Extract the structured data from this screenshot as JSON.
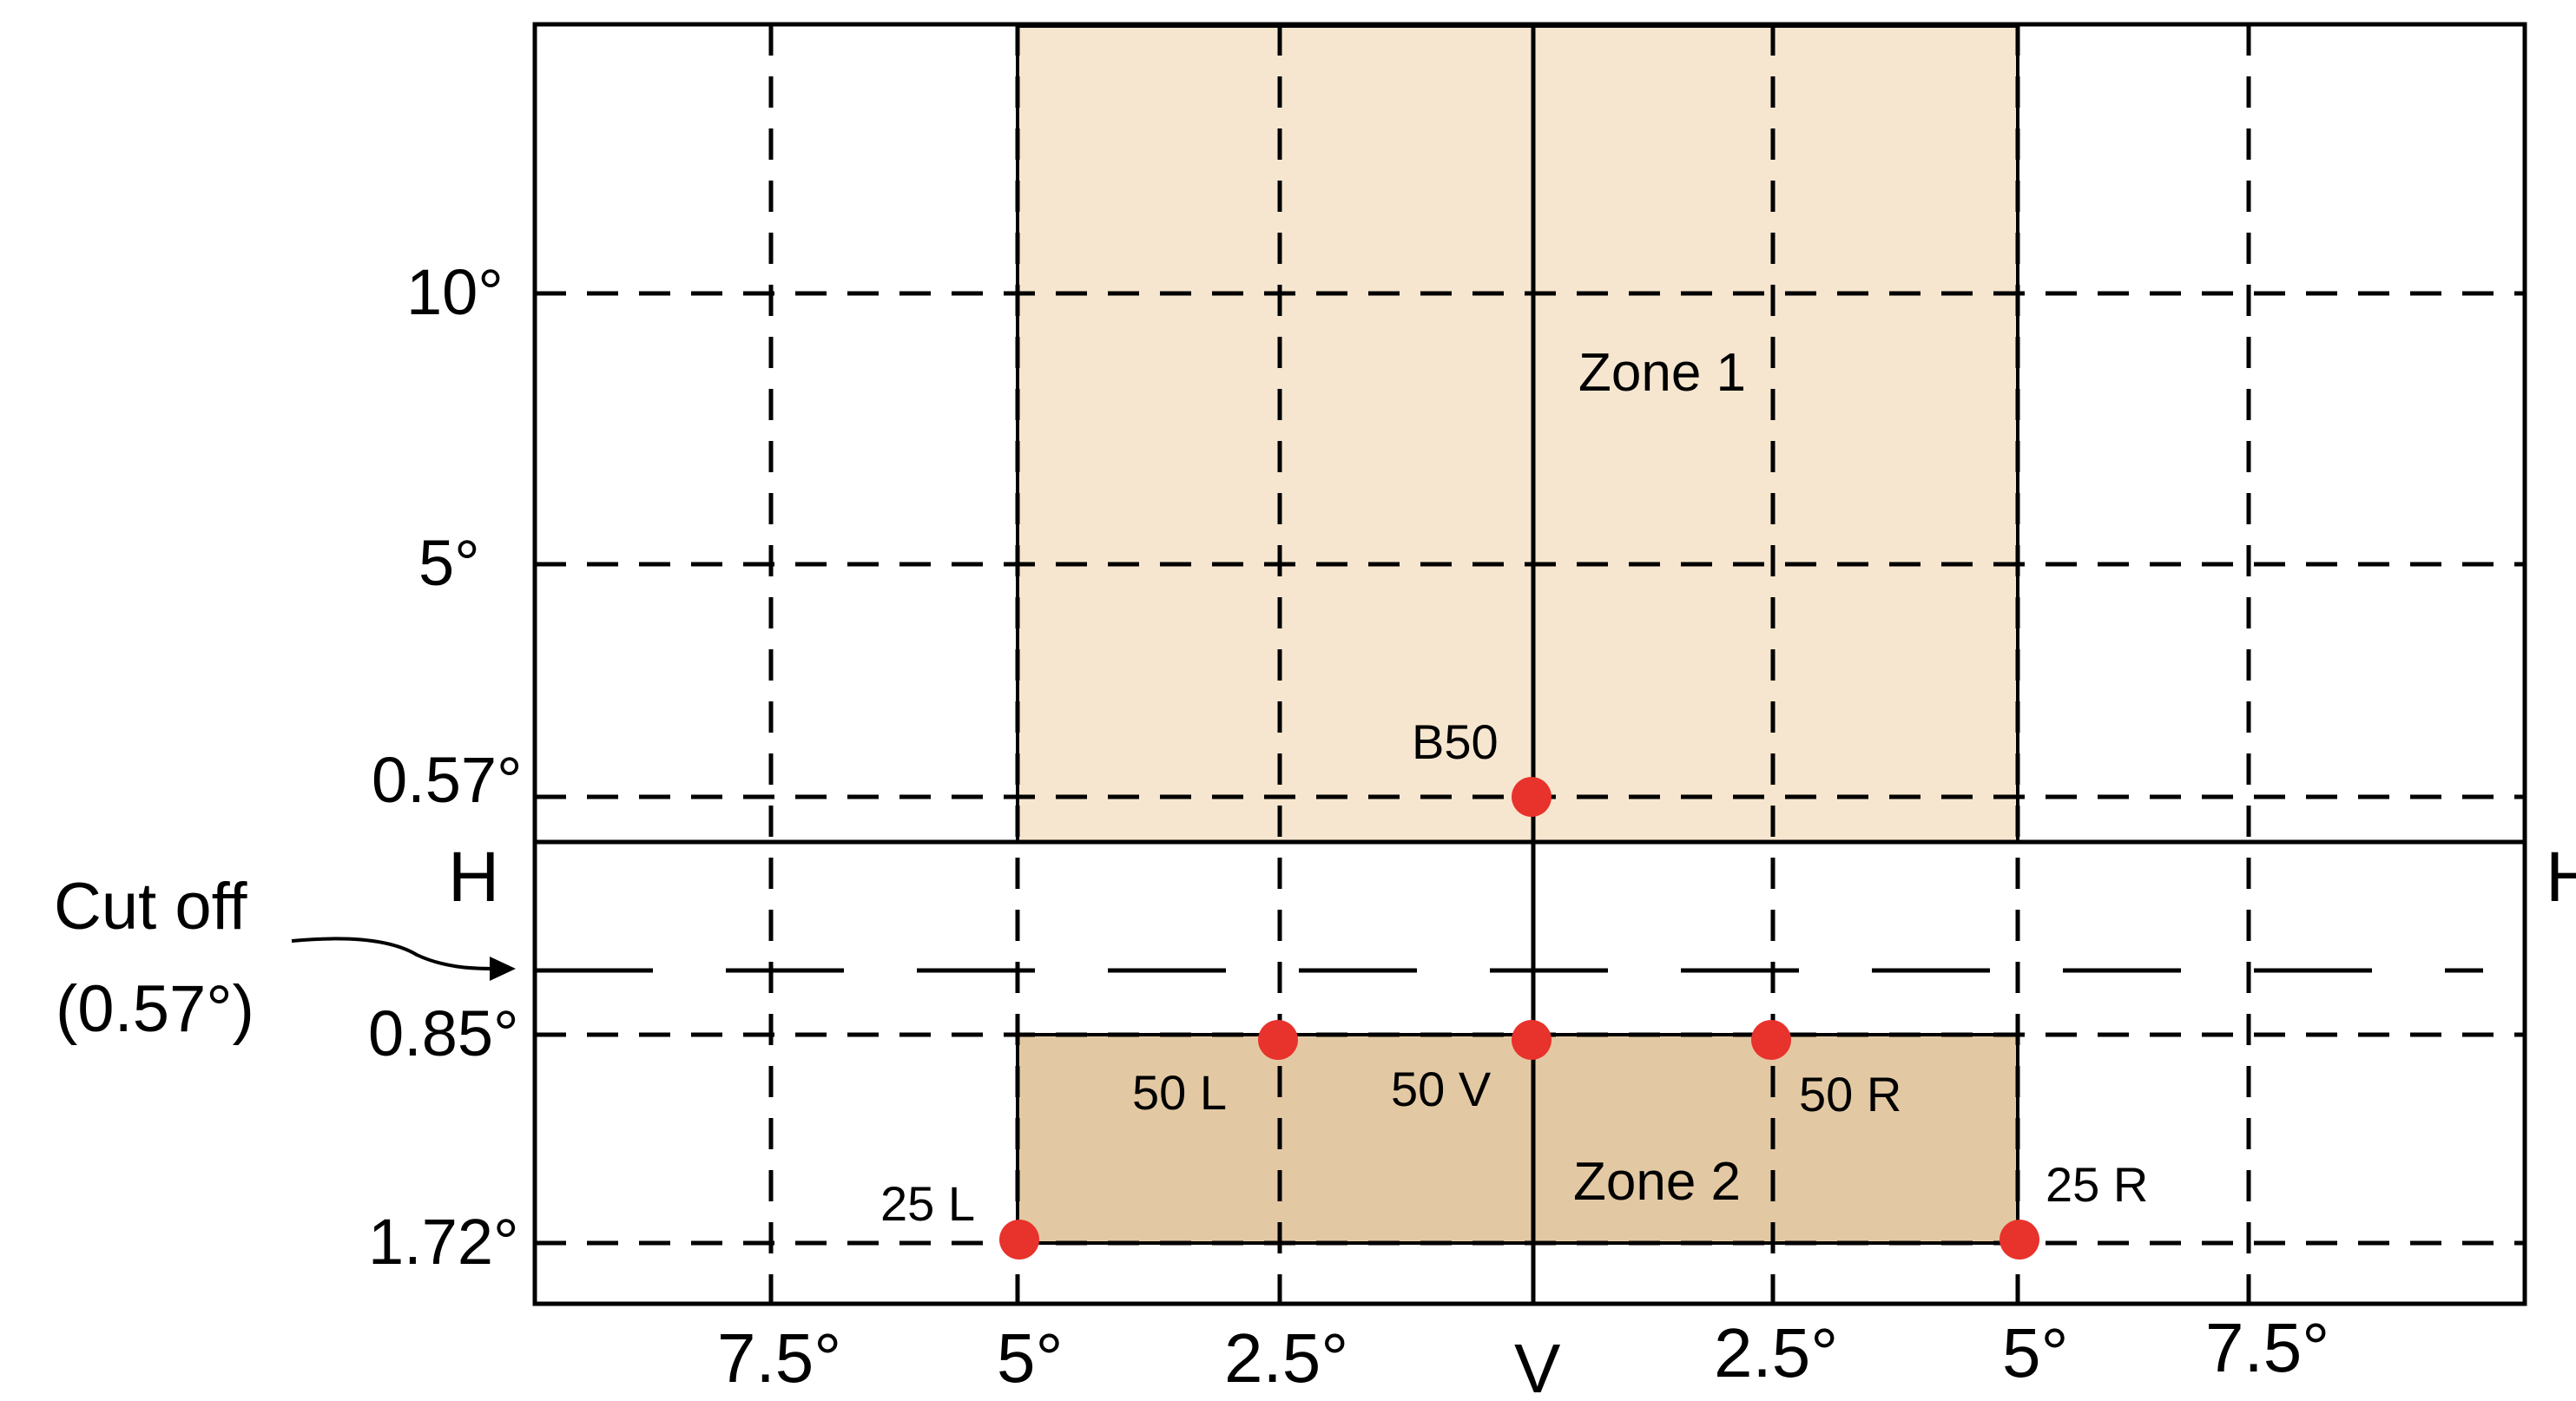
{
  "x_axis_labels": {
    "l75": "7.5°",
    "l5": "5°",
    "l25": "2.5°",
    "v": "V",
    "r25": "2.5°",
    "r5": "5°",
    "r75": "7.5°"
  },
  "y_axis_labels": {
    "up10": "10°",
    "up5": "5°",
    "up057": "0.57°",
    "down085": "0.85°",
    "down172": "1.72°"
  },
  "h_line_label_left": "H",
  "h_line_label_right": "H",
  "cutoff_label_line1": "Cut off",
  "cutoff_label_line2": "(0.57°)",
  "zones": {
    "zone1": "Zone 1",
    "zone2": "Zone 2"
  },
  "points": {
    "b50": "B50",
    "l50": "50 L",
    "v50": "50 V",
    "r50": "50 R",
    "l25": "25 L",
    "r25": "25 R"
  },
  "colors": {
    "zone1_fill": "#f7e6cf",
    "zone2_fill": "#e3c9a3",
    "point_color": "#e8322c"
  }
}
